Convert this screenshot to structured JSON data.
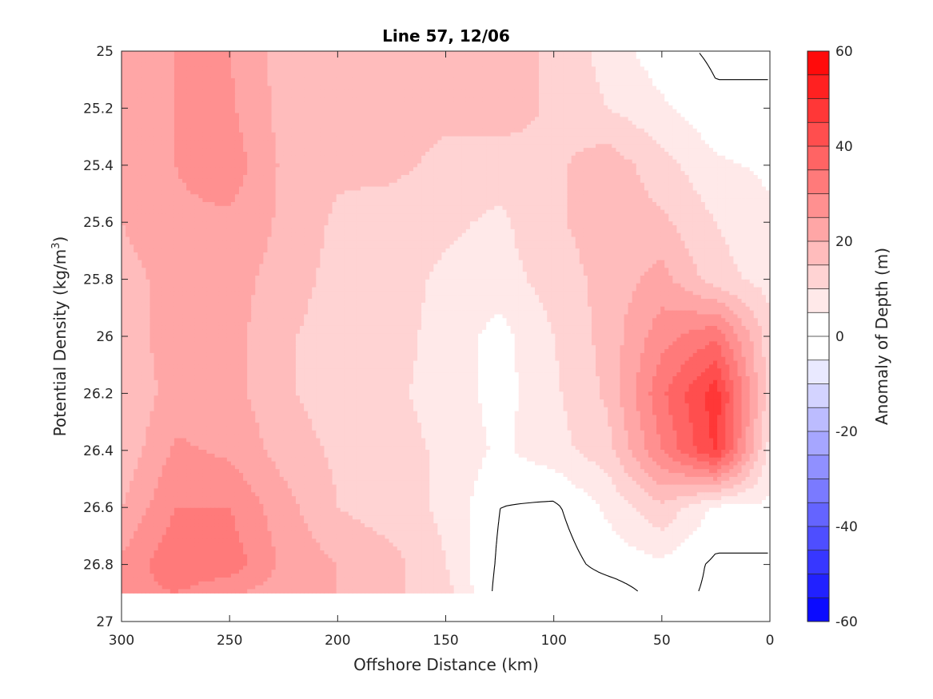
{
  "chart_data": {
    "type": "heatmap",
    "subtype": "filled-contour",
    "title": "Line 57, 12/06",
    "xlabel": "Offshore Distance (km)",
    "ylabel_prefix": "Potential Density (kg/m",
    "ylabel_sup": "3",
    "ylabel_suffix": ")",
    "xlim": [
      300,
      0
    ],
    "x_reversed": true,
    "ylim": [
      25,
      27
    ],
    "y_reversed": true,
    "x_ticks": [
      300,
      250,
      200,
      150,
      100,
      50,
      0
    ],
    "y_ticks": [
      "25",
      "25.2",
      "25.4",
      "25.6",
      "25.8",
      "26",
      "26.2",
      "26.4",
      "26.6",
      "26.8",
      "27"
    ],
    "colorbar": {
      "label": "Anomaly of Depth (m)",
      "limits": [
        -60,
        60
      ],
      "step": 5,
      "ticks": [
        60,
        40,
        20,
        0,
        -20,
        -40,
        -60
      ],
      "neg_color": "#0000ff",
      "pos_color": "#ff0000",
      "mid_color": "#ffffff"
    },
    "grid_x": [
      300,
      275,
      250,
      225,
      200,
      175,
      150,
      125,
      100,
      75,
      50,
      25,
      0
    ],
    "grid_y": [
      25,
      25.2,
      25.4,
      25.6,
      25.8,
      26,
      26.2,
      26.4,
      26.6,
      26.8,
      26.9
    ],
    "values": [
      [
        22,
        25,
        25,
        18,
        17,
        17,
        16,
        18,
        14,
        8,
        2,
        -1,
        0
      ],
      [
        20,
        25,
        26,
        18,
        17,
        16,
        16,
        18,
        14,
        10,
        6,
        1,
        0
      ],
      [
        21,
        25,
        28,
        19,
        16,
        16,
        14,
        12,
        14,
        18,
        12,
        6,
        4
      ],
      [
        20,
        24,
        24,
        19,
        14,
        13,
        11,
        9,
        14,
        18,
        16,
        10,
        6
      ],
      [
        18,
        22,
        22,
        18,
        13,
        12,
        9,
        8,
        12,
        17,
        22,
        12,
        8
      ],
      [
        18,
        22,
        22,
        16,
        12,
        12,
        8,
        3,
        10,
        17,
        28,
        34,
        12
      ],
      [
        16,
        22,
        22,
        16,
        12,
        11,
        8,
        3,
        9,
        16,
        34,
        48,
        12
      ],
      [
        16,
        26,
        24,
        18,
        14,
        12,
        9,
        4,
        8,
        13,
        30,
        46,
        8
      ],
      [
        20,
        30,
        30,
        22,
        15,
        12,
        9,
        0,
        -1,
        6,
        14,
        4,
        4
      ],
      [
        26,
        34,
        33,
        24,
        20,
        17,
        10,
        -1,
        -3,
        2,
        4,
        -1,
        -1
      ],
      [
        28,
        30,
        26,
        22,
        20,
        16,
        12,
        -2,
        -4,
        -3,
        2,
        -1,
        -1
      ]
    ]
  }
}
